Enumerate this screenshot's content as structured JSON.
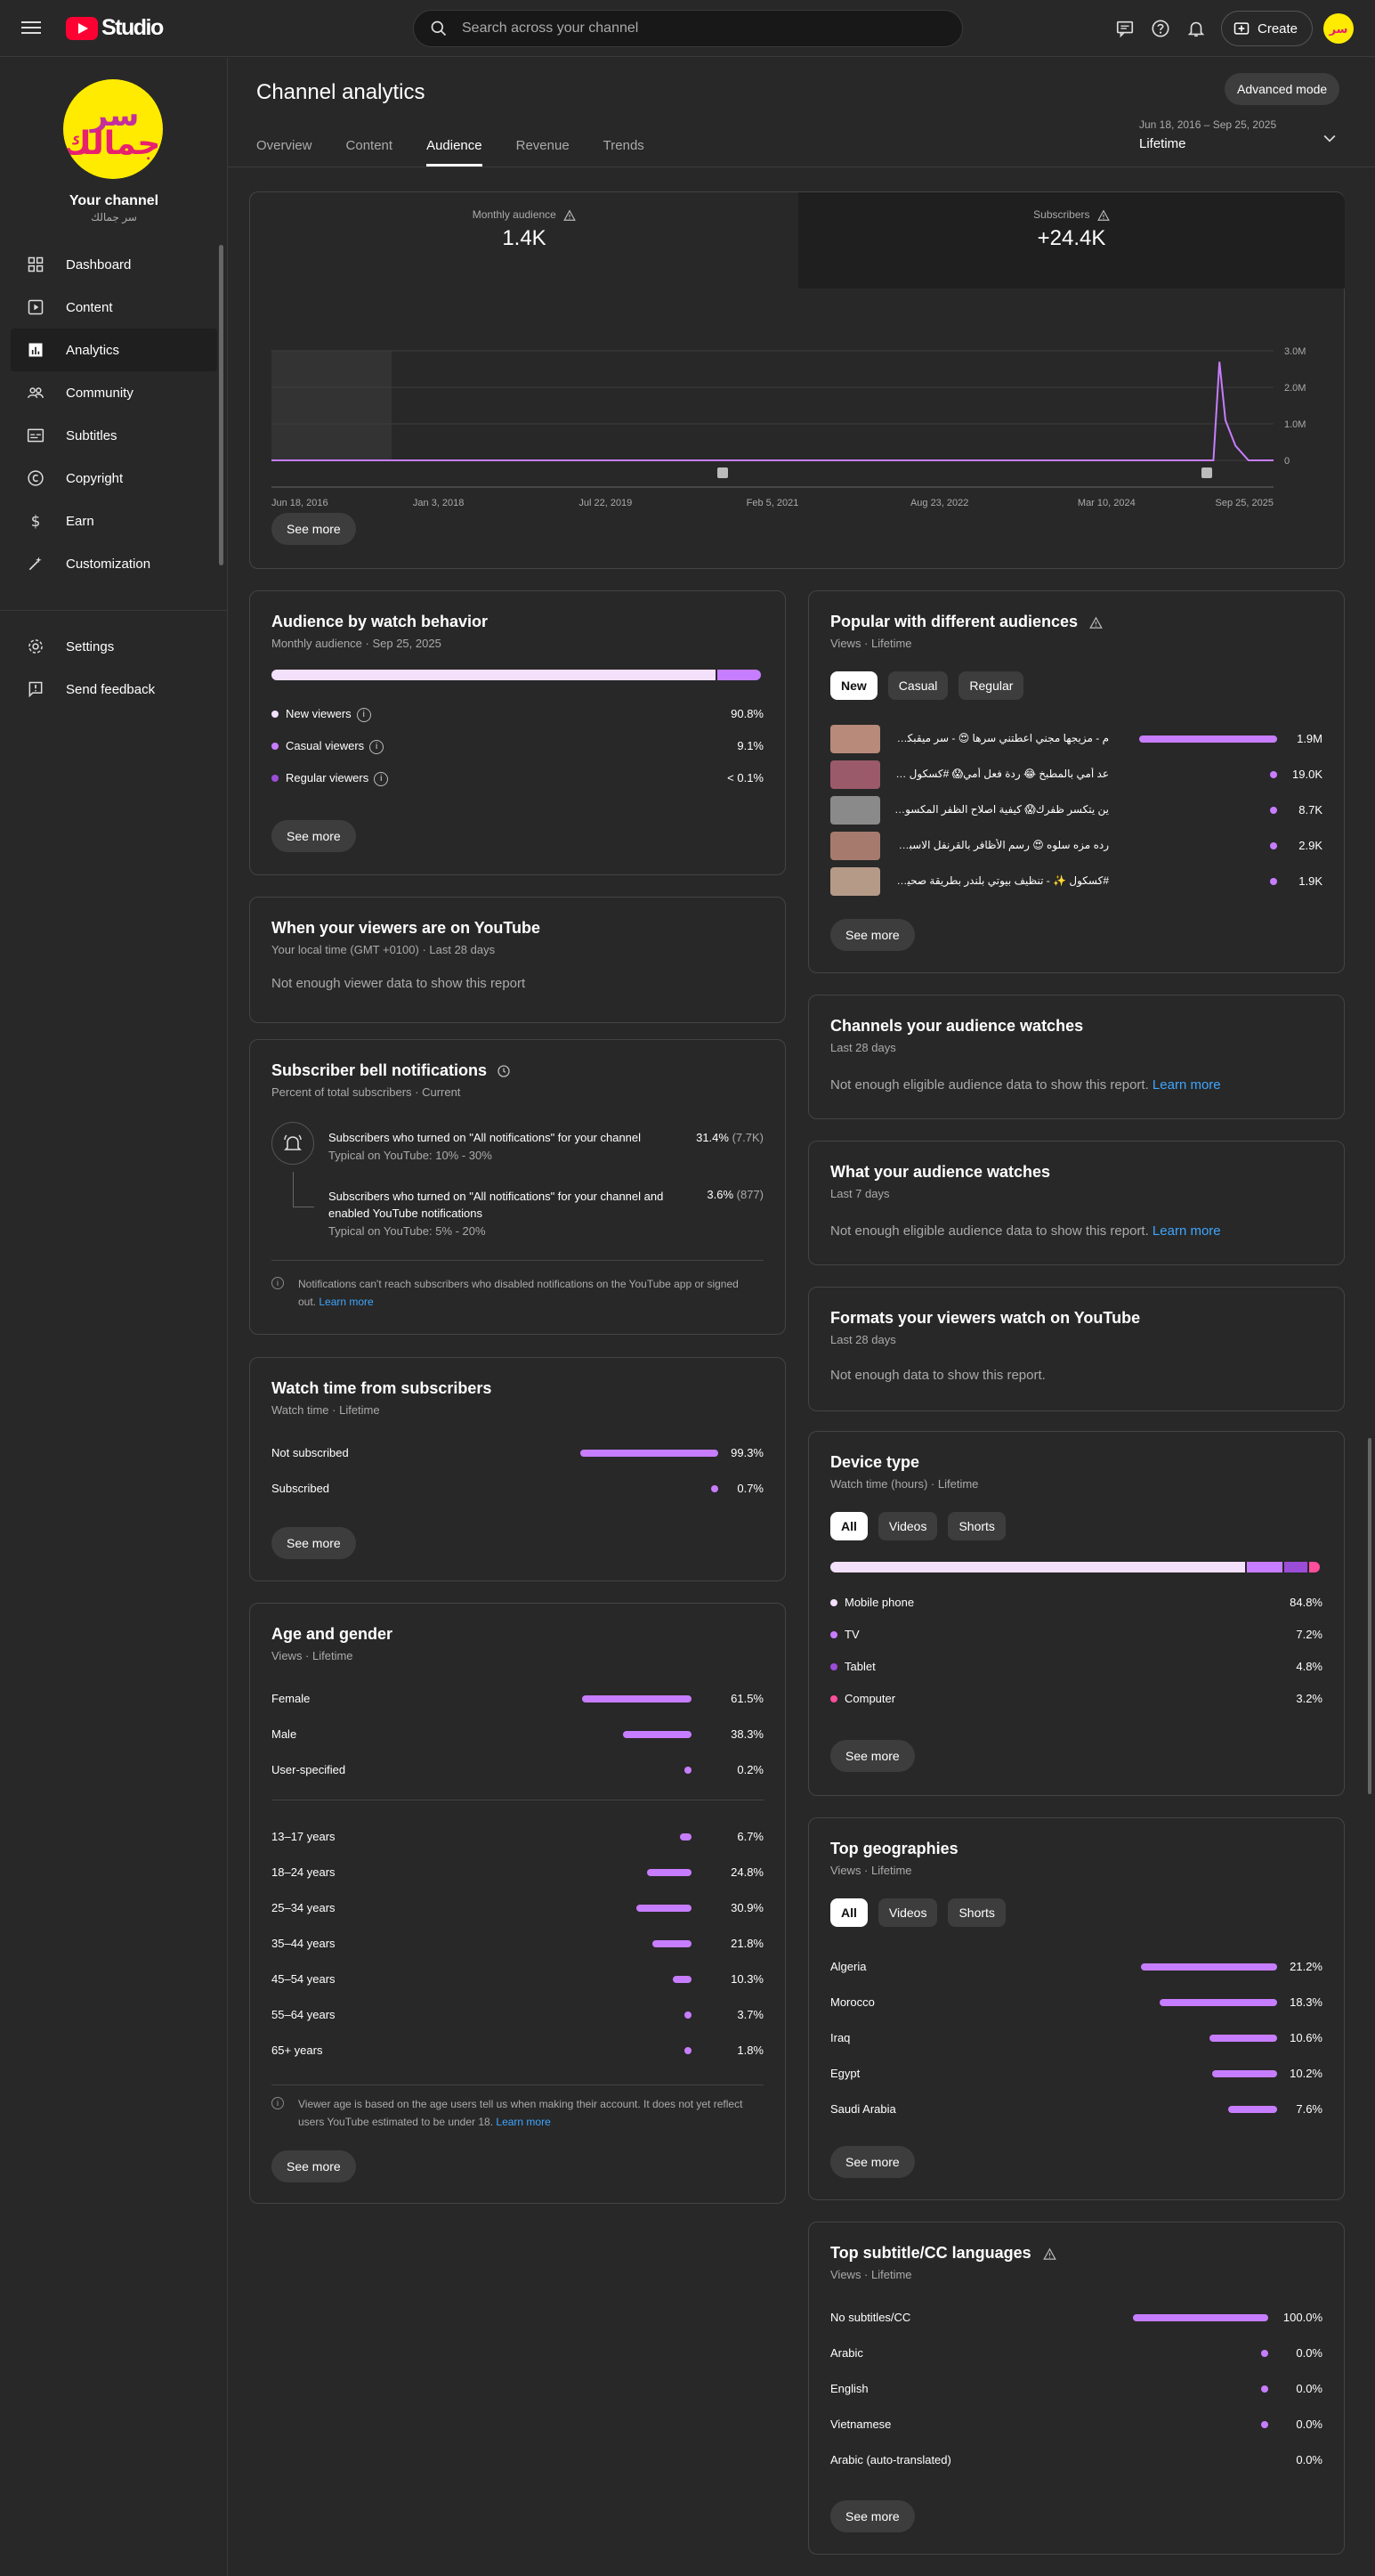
{
  "topbar": {
    "logo_text": "Studio",
    "search_placeholder": "Search across your channel",
    "create_label": "Create"
  },
  "sidebar": {
    "channel_title": "Your channel",
    "channel_name": "سر جمالك",
    "items": [
      {
        "label": "Dashboard",
        "icon": "dashboard-icon"
      },
      {
        "label": "Content",
        "icon": "content-icon"
      },
      {
        "label": "Analytics",
        "icon": "analytics-icon"
      },
      {
        "label": "Community",
        "icon": "community-icon"
      },
      {
        "label": "Subtitles",
        "icon": "subtitles-icon"
      },
      {
        "label": "Copyright",
        "icon": "copyright-icon"
      },
      {
        "label": "Earn",
        "icon": "earn-icon"
      },
      {
        "label": "Customization",
        "icon": "customization-icon"
      }
    ],
    "bottom_items": [
      {
        "label": "Settings",
        "icon": "settings-icon"
      },
      {
        "label": "Send feedback",
        "icon": "feedback-icon"
      }
    ]
  },
  "header": {
    "title": "Channel analytics",
    "advanced_mode": "Advanced mode",
    "tabs": [
      "Overview",
      "Content",
      "Audience",
      "Revenue",
      "Trends"
    ],
    "active_tab": "Audience",
    "date_range": "Jun 18, 2016 – Sep 25, 2025",
    "date_label": "Lifetime"
  },
  "overview_chart": {
    "metrics": [
      {
        "label": "Monthly audience",
        "value": "1.4K"
      },
      {
        "label": "Subscribers",
        "value": "+24.4K"
      }
    ],
    "y_ticks": [
      "3.0M",
      "2.0M",
      "1.0M",
      "0"
    ],
    "x_ticks": [
      "Jun 18, 2016",
      "Jan 3, 2018",
      "Jul 22, 2019",
      "Feb 5, 2021",
      "Aug 23, 2022",
      "Mar 10, 2024",
      "Sep 25, 2025"
    ],
    "see_more": "See more"
  },
  "chart_data": {
    "type": "line",
    "x": [
      "Jun 18, 2016",
      "Jan 3, 2018",
      "Jul 22, 2019",
      "Feb 5, 2021",
      "Aug 23, 2022",
      "Mar 10, 2024",
      "Jun 15, 2024",
      "Jul 2024",
      "Aug 2024",
      "Sep 2024",
      "Oct 2024",
      "Sep 25, 2025"
    ],
    "series": [
      {
        "values": [
          0,
          0,
          0,
          0,
          0,
          0,
          0,
          2700000,
          1100000,
          400000,
          0,
          0
        ]
      }
    ],
    "ylim": [
      0,
      3000000
    ],
    "y_ticks": [
      0,
      1000000,
      2000000,
      3000000
    ],
    "grid": true
  },
  "watch_behavior": {
    "title": "Audience by watch behavior",
    "subtitle": "Monthly audience · Sep 25, 2025",
    "stack": [
      0.908,
      0.091,
      0.001
    ],
    "stack_colors": [
      "#f3e0fb",
      "#c77dff",
      "#9b4dd8"
    ],
    "rows": [
      {
        "label": "New viewers",
        "value": "90.8%",
        "color": "#f3e0fb"
      },
      {
        "label": "Casual viewers",
        "value": "9.1%",
        "color": "#c77dff"
      },
      {
        "label": "Regular viewers",
        "value": "< 0.1%",
        "color": "#9b4dd8"
      }
    ],
    "see_more": "See more"
  },
  "popular": {
    "title": "Popular with different audiences",
    "subtitle": "Views · Lifetime",
    "chips": [
      "New",
      "Casual",
      "Regular"
    ],
    "rows": [
      {
        "title": "م - مزيجها مجني اعطتني سرها 😍 - سر ميقبكم في البيت",
        "value": "1.9M",
        "fraction": 1.0
      },
      {
        "title": "عد أمي بالمطبخ 😂 ردة فعل أمي😱 #كسكول #عزيز",
        "value": "19.0K",
        "fraction": 0.01
      },
      {
        "title": "ين يتكسر ظفرك😱 كيفية اصلاح الظفر المكسور #كسكول",
        "value": "8.7K",
        "fraction": 0.005
      },
      {
        "title": "رده مزه سلوه 😍 رسم الأظافر بالقرنفل الاسبق #كسكول",
        "value": "2.9K",
        "fraction": 0.002
      },
      {
        "title": "#كسكول ✨ - تنظيف بيوتي بلندر بطريقة صحيحة 😮",
        "value": "1.9K",
        "fraction": 0.001
      }
    ],
    "see_more": "See more"
  },
  "when_viewers": {
    "title": "When your viewers are on YouTube",
    "subtitle": "Your local time (GMT +0100) · Last 28 days",
    "message": "Not enough viewer data to show this report"
  },
  "channels_watch": {
    "title": "Channels your audience watches",
    "subtitle": "Last 28 days",
    "message": "Not enough eligible audience data to show this report.",
    "link": "Learn more"
  },
  "what_watch": {
    "title": "What your audience watches",
    "subtitle": "Last 7 days",
    "message": "Not enough eligible audience data to show this report.",
    "link": "Learn more"
  },
  "bell": {
    "title": "Subscriber bell notifications",
    "subtitle": "Percent of total subscribers · Current",
    "row1_label": "Subscribers who turned on \"All notifications\" for your channel",
    "row1_typical": "Typical on YouTube: 10% - 30%",
    "row1_value": "31.4%",
    "row1_count": "(7.7K)",
    "row2_label": "Subscribers who turned on \"All notifications\" for your channel and enabled YouTube notifications",
    "row2_typical": "Typical on YouTube: 5% - 20%",
    "row2_value": "3.6%",
    "row2_count": "(877)",
    "note": "Notifications can't reach subscribers who disabled notifications on the YouTube app or signed out.",
    "note_link": "Learn more"
  },
  "formats": {
    "title": "Formats your viewers watch on YouTube",
    "subtitle": "Last 28 days",
    "message": "Not enough data to show this report."
  },
  "watch_subs": {
    "title": "Watch time from subscribers",
    "subtitle": "Watch time · Lifetime",
    "rows": [
      {
        "label": "Not subscribed",
        "value": "99.3%",
        "fraction": 0.993
      },
      {
        "label": "Subscribed",
        "value": "0.7%",
        "fraction": 0.007
      }
    ],
    "see_more": "See more"
  },
  "device": {
    "title": "Device type",
    "subtitle": "Watch time (hours) · Lifetime",
    "chips": [
      "All",
      "Videos",
      "Shorts"
    ],
    "stack": [
      0.848,
      0.072,
      0.048,
      0.032
    ],
    "rows": [
      {
        "label": "Mobile phone",
        "value": "84.8%",
        "color": "#f3e0fb"
      },
      {
        "label": "TV",
        "value": "7.2%",
        "color": "#c77dff"
      },
      {
        "label": "Tablet",
        "value": "4.8%",
        "color": "#9b4dd8"
      },
      {
        "label": "Computer",
        "value": "3.2%",
        "color": "#ff4e9a"
      }
    ],
    "see_more": "See more"
  },
  "age_gender": {
    "title": "Age and gender",
    "subtitle": "Views · Lifetime",
    "gender": [
      {
        "label": "Female",
        "value": "61.5%",
        "fraction": 0.615
      },
      {
        "label": "Male",
        "value": "38.3%",
        "fraction": 0.383
      },
      {
        "label": "User-specified",
        "value": "0.2%",
        "fraction": 0.002
      }
    ],
    "age": [
      {
        "label": "13–17 years",
        "value": "6.7%",
        "fraction": 0.067
      },
      {
        "label": "18–24 years",
        "value": "24.8%",
        "fraction": 0.248
      },
      {
        "label": "25–34 years",
        "value": "30.9%",
        "fraction": 0.309
      },
      {
        "label": "35–44 years",
        "value": "21.8%",
        "fraction": 0.218
      },
      {
        "label": "45–54 years",
        "value": "10.3%",
        "fraction": 0.103
      },
      {
        "label": "55–64 years",
        "value": "3.7%",
        "fraction": 0.037
      },
      {
        "label": "65+ years",
        "value": "1.8%",
        "fraction": 0.018
      }
    ],
    "note": "Viewer age is based on the age users tell us when making their account. It does not yet reflect users YouTube estimated to be under 18.",
    "note_link": "Learn more",
    "see_more": "See more"
  },
  "geographies": {
    "title": "Top geographies",
    "subtitle": "Views · Lifetime",
    "chips": [
      "All",
      "Videos",
      "Shorts"
    ],
    "rows": [
      {
        "label": "Algeria",
        "value": "21.2%",
        "fraction": 0.212
      },
      {
        "label": "Morocco",
        "value": "18.3%",
        "fraction": 0.183
      },
      {
        "label": "Iraq",
        "value": "10.6%",
        "fraction": 0.106
      },
      {
        "label": "Egypt",
        "value": "10.2%",
        "fraction": 0.102
      },
      {
        "label": "Saudi Arabia",
        "value": "7.6%",
        "fraction": 0.076
      }
    ],
    "see_more": "See more"
  },
  "subtitles": {
    "title": "Top subtitle/CC languages",
    "subtitle": "Views · Lifetime",
    "rows": [
      {
        "label": "No subtitles/CC",
        "value": "100.0%",
        "fraction": 1.0,
        "mark": "bar"
      },
      {
        "label": "Arabic",
        "value": "0.0%",
        "fraction": 0.0,
        "mark": "dot"
      },
      {
        "label": "English",
        "value": "0.0%",
        "fraction": 0.0,
        "mark": "dot"
      },
      {
        "label": "Vietnamese",
        "value": "0.0%",
        "fraction": 0.0,
        "mark": "dot"
      },
      {
        "label": "Arabic (auto-translated)",
        "value": "0.0%",
        "fraction": 0.0,
        "mark": "none"
      }
    ],
    "see_more": "See more"
  }
}
